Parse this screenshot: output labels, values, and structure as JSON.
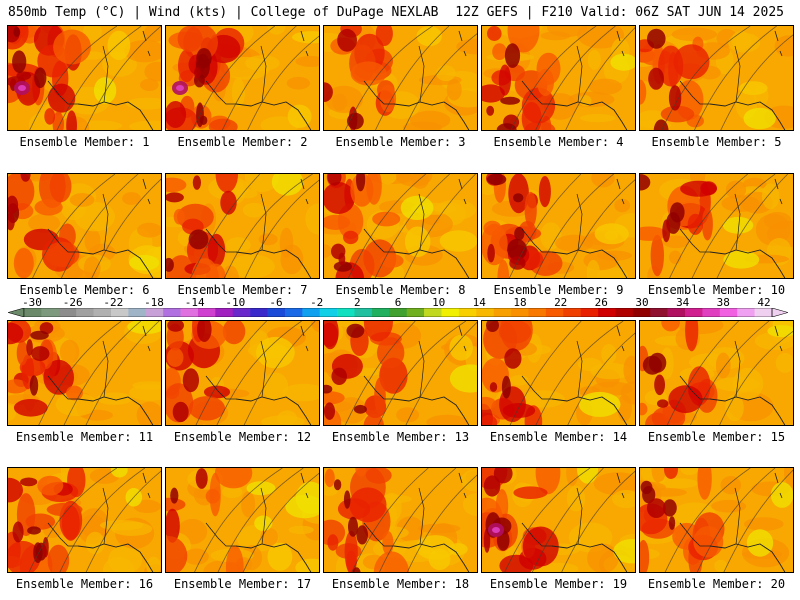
{
  "header": {
    "left": "850mb Temp (°C) | Wind (kts) | College of DuPage NEXLAB",
    "right": "12Z GEFS | F210 Valid: 06Z SAT JUN 14 2025"
  },
  "members": [
    {
      "label": "Ensemble Member: 1",
      "heat": 0.85,
      "cool": 0.2,
      "violet": true
    },
    {
      "label": "Ensemble Member: 2",
      "heat": 0.8,
      "cool": 0.15,
      "violet": true
    },
    {
      "label": "Ensemble Member: 3",
      "heat": 0.5,
      "cool": 0.1,
      "violet": false
    },
    {
      "label": "Ensemble Member: 4",
      "heat": 0.65,
      "cool": 0.1,
      "violet": false
    },
    {
      "label": "Ensemble Member: 5",
      "heat": 0.55,
      "cool": 0.15,
      "violet": false
    },
    {
      "label": "Ensemble Member: 6",
      "heat": 0.45,
      "cool": 0.35,
      "violet": false
    },
    {
      "label": "Ensemble Member: 7",
      "heat": 0.55,
      "cool": 0.1,
      "violet": false
    },
    {
      "label": "Ensemble Member: 8",
      "heat": 0.6,
      "cool": 0.3,
      "violet": false
    },
    {
      "label": "Ensemble Member: 9",
      "heat": 0.75,
      "cool": 0.1,
      "violet": false
    },
    {
      "label": "Ensemble Member: 10",
      "heat": 0.45,
      "cool": 0.15,
      "violet": false
    },
    {
      "label": "Ensemble Member: 11",
      "heat": 0.6,
      "cool": 0.1,
      "violet": false
    },
    {
      "label": "Ensemble Member: 12",
      "heat": 0.55,
      "cool": 0.1,
      "violet": false
    },
    {
      "label": "Ensemble Member: 13",
      "heat": 0.6,
      "cool": 0.2,
      "violet": false
    },
    {
      "label": "Ensemble Member: 14",
      "heat": 0.55,
      "cool": 0.1,
      "violet": false
    },
    {
      "label": "Ensemble Member: 15",
      "heat": 0.5,
      "cool": 0.2,
      "violet": false
    },
    {
      "label": "Ensemble Member: 16",
      "heat": 0.7,
      "cool": 0.15,
      "violet": false
    },
    {
      "label": "Ensemble Member: 17",
      "heat": 0.3,
      "cool": 0.6,
      "violet": false
    },
    {
      "label": "Ensemble Member: 18",
      "heat": 0.65,
      "cool": 0.3,
      "violet": false
    },
    {
      "label": "Ensemble Member: 19",
      "heat": 0.7,
      "cool": 0.15,
      "violet": true
    },
    {
      "label": "Ensemble Member: 20",
      "heat": 0.6,
      "cool": 0.15,
      "violet": false
    }
  ],
  "colorbar": {
    "unit": "°C",
    "tick_labels": [
      "-30",
      "-26",
      "-22",
      "-18",
      "-14",
      "-10",
      "-6",
      "-2",
      "2",
      "6",
      "10",
      "14",
      "18",
      "22",
      "26",
      "30",
      "34",
      "38",
      "42"
    ],
    "colors": [
      "#6a8a6a",
      "#7e9a7e",
      "#8c8c8c",
      "#a0a0a0",
      "#b0b0b0",
      "#c8c8c8",
      "#a0b4c8",
      "#c8a0d8",
      "#b070e0",
      "#e070e0",
      "#d040d0",
      "#a020c0",
      "#6a2acb",
      "#3a2acb",
      "#1a4ad8",
      "#1a6ae8",
      "#10a0f0",
      "#10d0e8",
      "#10e0c0",
      "#20c0a0",
      "#20b060",
      "#40a030",
      "#70b020",
      "#c0d820",
      "#f0f000",
      "#f8d000",
      "#f8b800",
      "#f8a000",
      "#f89000",
      "#f87800",
      "#f85a00",
      "#f04000",
      "#e82000",
      "#d00000",
      "#b00000",
      "#900000",
      "#901030",
      "#b01060",
      "#d02090",
      "#e040c0",
      "#f060e0",
      "#f0a0f0",
      "#f0d0f0"
    ]
  }
}
